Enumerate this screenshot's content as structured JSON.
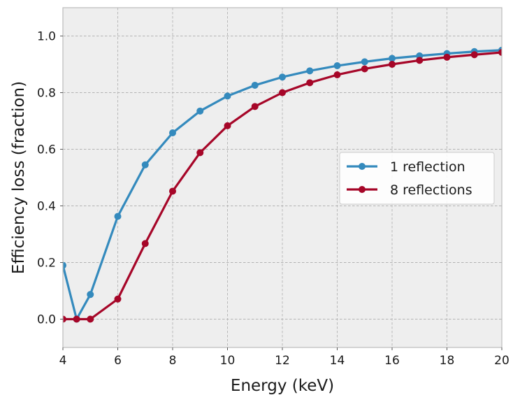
{
  "chart_data": {
    "type": "line",
    "title": "",
    "xlabel": "Energy (keV)",
    "ylabel": "Efficiency loss (fraction)",
    "xlim": [
      4,
      20
    ],
    "ylim": [
      -0.1,
      1.1
    ],
    "xticks": [
      4,
      6,
      8,
      10,
      12,
      14,
      16,
      18,
      20
    ],
    "yticks": [
      0.0,
      0.2,
      0.4,
      0.6,
      0.8,
      1.0
    ],
    "xtick_labels": [
      "4",
      "6",
      "8",
      "10",
      "12",
      "14",
      "16",
      "18",
      "20"
    ],
    "ytick_labels": [
      "0.0",
      "0.2",
      "0.4",
      "0.6",
      "0.8",
      "1.0"
    ],
    "grid": true,
    "legend_position": "center-right",
    "series": [
      {
        "name": "1 reflection",
        "color": "#348abd",
        "x": [
          4,
          4.5,
          5,
          6,
          7,
          8,
          9,
          10,
          11,
          12,
          13,
          14,
          15,
          16,
          17,
          18,
          19,
          20
        ],
        "y": [
          0.19,
          0.0,
          0.087,
          0.363,
          0.545,
          0.658,
          0.735,
          0.788,
          0.826,
          0.855,
          0.877,
          0.895,
          0.909,
          0.921,
          0.93,
          0.938,
          0.945,
          0.95
        ]
      },
      {
        "name": "8 reflections",
        "color": "#a60628",
        "x": [
          4,
          4.5,
          5,
          6,
          7,
          8,
          9,
          10,
          11,
          12,
          13,
          14,
          15,
          16,
          17,
          18,
          19,
          20
        ],
        "y": [
          0.0,
          0.0,
          0.0,
          0.071,
          0.267,
          0.452,
          0.588,
          0.683,
          0.751,
          0.8,
          0.835,
          0.863,
          0.884,
          0.9,
          0.914,
          0.925,
          0.934,
          0.942
        ]
      }
    ]
  }
}
